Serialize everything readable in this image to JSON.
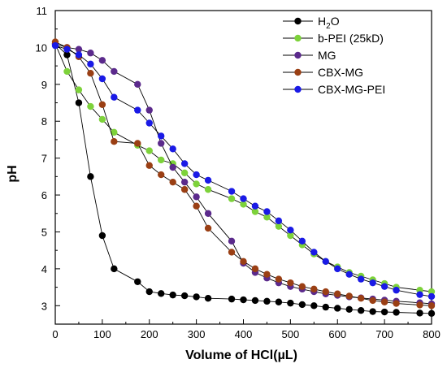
{
  "chart_data": {
    "type": "line",
    "xlabel": "Volume of HCl(µL)",
    "ylabel": "pH",
    "xlim": [
      0,
      800
    ],
    "ylim": [
      2.5,
      11
    ],
    "xticks": [
      0,
      100,
      200,
      300,
      400,
      500,
      600,
      700,
      800
    ],
    "yticks": [
      3,
      4,
      5,
      6,
      7,
      8,
      9,
      10,
      11
    ],
    "grid": false,
    "legend_position": "top-right",
    "series": [
      {
        "name": "H2O",
        "name_main": "H",
        "name_sub": "2",
        "name_tail": "O",
        "color": "#000000",
        "x": [
          0,
          25,
          50,
          75,
          100,
          125,
          175,
          200,
          225,
          250,
          275,
          300,
          325,
          375,
          400,
          425,
          450,
          475,
          500,
          525,
          550,
          575,
          600,
          625,
          650,
          675,
          700,
          725,
          775,
          800
        ],
        "y": [
          10.1,
          9.8,
          8.5,
          6.5,
          4.9,
          4.0,
          3.65,
          3.38,
          3.33,
          3.29,
          3.27,
          3.24,
          3.2,
          3.18,
          3.16,
          3.14,
          3.12,
          3.1,
          3.07,
          3.03,
          3.0,
          2.96,
          2.93,
          2.9,
          2.87,
          2.84,
          2.83,
          2.82,
          2.8,
          2.79
        ]
      },
      {
        "name": "b-PEI (25kD)",
        "color": "#7dd23a",
        "x": [
          0,
          25,
          50,
          75,
          100,
          125,
          175,
          200,
          225,
          250,
          275,
          300,
          325,
          375,
          400,
          425,
          450,
          475,
          500,
          525,
          550,
          575,
          600,
          625,
          650,
          675,
          700,
          725,
          775,
          800
        ],
        "y": [
          10.1,
          9.35,
          8.85,
          8.4,
          8.05,
          7.7,
          7.35,
          7.2,
          6.95,
          6.85,
          6.6,
          6.3,
          6.15,
          5.9,
          5.75,
          5.55,
          5.4,
          5.15,
          4.9,
          4.65,
          4.4,
          4.2,
          4.05,
          3.9,
          3.8,
          3.7,
          3.6,
          3.5,
          3.42,
          3.38
        ]
      },
      {
        "name": "MG",
        "color": "#5b2a8c",
        "x": [
          0,
          25,
          50,
          75,
          100,
          125,
          175,
          200,
          225,
          250,
          275,
          300,
          325,
          375,
          400,
          425,
          450,
          475,
          500,
          525,
          550,
          575,
          600,
          625,
          650,
          675,
          700,
          725,
          775,
          800
        ],
        "y": [
          10.1,
          10.0,
          9.95,
          9.85,
          9.65,
          9.35,
          9.0,
          8.3,
          7.4,
          6.75,
          6.35,
          5.95,
          5.5,
          4.75,
          4.15,
          3.9,
          3.75,
          3.62,
          3.52,
          3.45,
          3.38,
          3.32,
          3.28,
          3.24,
          3.21,
          3.18,
          3.15,
          3.12,
          3.08,
          3.05
        ]
      },
      {
        "name": "CBX-MG",
        "color": "#9a3f14",
        "x": [
          0,
          25,
          50,
          75,
          100,
          125,
          175,
          200,
          225,
          250,
          275,
          300,
          325,
          375,
          400,
          425,
          450,
          475,
          500,
          525,
          550,
          575,
          600,
          625,
          650,
          675,
          700,
          725,
          775,
          800
        ],
        "y": [
          10.15,
          10.0,
          9.75,
          9.3,
          8.45,
          7.45,
          7.4,
          6.8,
          6.55,
          6.35,
          6.15,
          5.7,
          5.1,
          4.45,
          4.2,
          4.0,
          3.85,
          3.72,
          3.62,
          3.52,
          3.45,
          3.38,
          3.32,
          3.26,
          3.2,
          3.14,
          3.1,
          3.06,
          3.02,
          3.0
        ]
      },
      {
        "name": "CBX-MG-PEI",
        "color": "#1a1ae6",
        "x": [
          0,
          25,
          50,
          75,
          100,
          125,
          175,
          200,
          225,
          250,
          275,
          300,
          325,
          375,
          400,
          425,
          450,
          475,
          500,
          525,
          550,
          575,
          600,
          625,
          650,
          675,
          700,
          725,
          775,
          800
        ],
        "y": [
          10.05,
          9.95,
          9.8,
          9.55,
          9.15,
          8.65,
          8.3,
          7.95,
          7.6,
          7.25,
          6.85,
          6.55,
          6.4,
          6.1,
          5.9,
          5.7,
          5.55,
          5.3,
          5.05,
          4.75,
          4.45,
          4.2,
          4.0,
          3.85,
          3.72,
          3.62,
          3.52,
          3.42,
          3.3,
          3.25
        ]
      }
    ]
  }
}
